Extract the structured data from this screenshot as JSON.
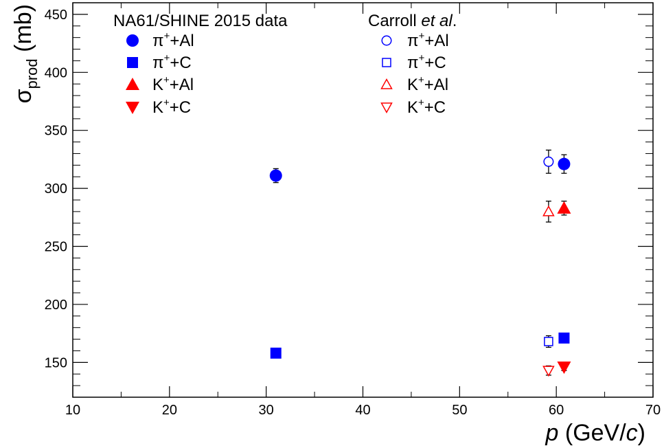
{
  "chart_data": {
    "type": "scatter",
    "xlabel": {
      "var": "p",
      "unit": " (GeV/",
      "unit_var": "c",
      "close": ")"
    },
    "ylabel": {
      "sym": "σ",
      "sub": "prod",
      "unit": " (mb)"
    },
    "xlim": [
      10,
      70
    ],
    "ylim": [
      120,
      460
    ],
    "xticks": [
      10,
      20,
      30,
      40,
      50,
      60,
      70
    ],
    "yticks": [
      150,
      200,
      250,
      300,
      350,
      400,
      450
    ],
    "grid": false,
    "legend_placement": "top",
    "legend_groups": [
      {
        "title": "NA61/SHINE 2015 data"
      },
      {
        "title_plain": "Carroll ",
        "title_italic": "et al",
        "title_tail": "."
      }
    ],
    "series": [
      {
        "name": "π+Al",
        "label": {
          "base": "π",
          "sup": "+",
          "rest": "+Al"
        },
        "group": 0,
        "marker": "circle",
        "filled": true,
        "color": "#0000ff",
        "points": [
          {
            "x": 31.0,
            "y": 311,
            "err": 6
          },
          {
            "x": 60.8,
            "y": 321,
            "err": 8
          }
        ]
      },
      {
        "name": "π+C",
        "label": {
          "base": "π",
          "sup": "+",
          "rest": "+C"
        },
        "group": 0,
        "marker": "square",
        "filled": true,
        "color": "#0000ff",
        "points": [
          {
            "x": 31.0,
            "y": 158,
            "err": 3
          },
          {
            "x": 60.8,
            "y": 171,
            "err": 4
          }
        ]
      },
      {
        "name": "K+Al",
        "label": {
          "base": "K",
          "sup": "+",
          "rest": "+Al"
        },
        "group": 0,
        "marker": "triangle-up",
        "filled": true,
        "color": "#ff0000",
        "points": [
          {
            "x": 60.8,
            "y": 283,
            "err": 6
          }
        ]
      },
      {
        "name": "K+C",
        "label": {
          "base": "K",
          "sup": "+",
          "rest": "+C"
        },
        "group": 0,
        "marker": "triangle-down",
        "filled": true,
        "color": "#ff0000",
        "points": [
          {
            "x": 60.8,
            "y": 146,
            "err": 3
          }
        ]
      },
      {
        "name": "π+Al",
        "label": {
          "base": "π",
          "sup": "+",
          "rest": "+Al"
        },
        "group": 1,
        "marker": "circle",
        "filled": false,
        "color": "#0000ff",
        "points": [
          {
            "x": 59.2,
            "y": 323,
            "err": 10
          }
        ]
      },
      {
        "name": "π+C",
        "label": {
          "base": "π",
          "sup": "+",
          "rest": "+C"
        },
        "group": 1,
        "marker": "square",
        "filled": false,
        "color": "#0000ff",
        "points": [
          {
            "x": 59.2,
            "y": 168,
            "err": 5
          }
        ]
      },
      {
        "name": "K+Al",
        "label": {
          "base": "K",
          "sup": "+",
          "rest": "+Al"
        },
        "group": 1,
        "marker": "triangle-up",
        "filled": false,
        "color": "#ff0000",
        "points": [
          {
            "x": 59.2,
            "y": 280,
            "err": 9
          }
        ]
      },
      {
        "name": "K+C",
        "label": {
          "base": "K",
          "sup": "+",
          "rest": "+C"
        },
        "group": 1,
        "marker": "triangle-down",
        "filled": false,
        "color": "#ff0000",
        "points": [
          {
            "x": 59.2,
            "y": 143,
            "err": 4
          }
        ]
      }
    ]
  }
}
